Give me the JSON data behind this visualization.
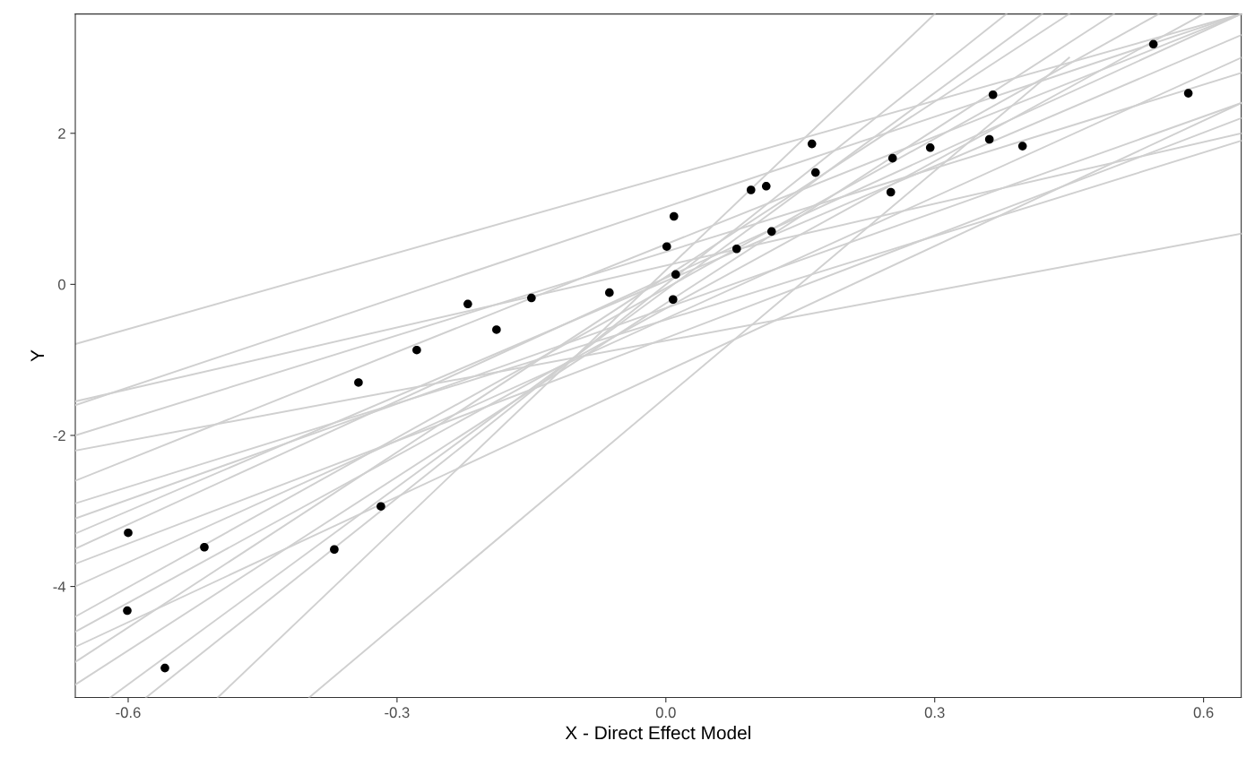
{
  "chart_data": {
    "type": "scatter",
    "xlabel": "X - Direct Effect Model",
    "ylabel": "Y",
    "xlim": [
      -0.659,
      0.642
    ],
    "ylim": [
      -5.47,
      3.58
    ],
    "xticks": [
      -0.6,
      -0.3,
      {
        "value": 0,
        "label": "0.0"
      },
      0.3,
      0.6
    ],
    "yticks": [
      -4,
      -2,
      0,
      2
    ],
    "grid": false,
    "legend": false,
    "series": [
      {
        "type": "line",
        "color": "#d0d0d0",
        "x": [
          -0.659,
          0.642
        ],
        "values": [
          -0.79,
          3.58
        ]
      },
      {
        "type": "line",
        "color": "#d0d0d0",
        "x": [
          -0.659,
          0.642
        ],
        "values": [
          -1.55,
          2.0
        ]
      },
      {
        "type": "line",
        "color": "#d0d0d0",
        "x": [
          -0.659,
          0.642
        ],
        "values": [
          -2.2,
          0.67
        ]
      },
      {
        "type": "line",
        "color": "#d0d0d0",
        "x": [
          -0.659,
          0.642
        ],
        "values": [
          -3.1,
          2.4
        ]
      },
      {
        "type": "line",
        "color": "#d0d0d0",
        "x": [
          -0.659,
          0.642
        ],
        "values": [
          -3.3,
          3.3
        ]
      },
      {
        "type": "line",
        "color": "#d0d0d0",
        "x": [
          -0.659,
          0.55
        ],
        "values": [
          -4.4,
          3.58
        ]
      },
      {
        "type": "line",
        "color": "#d0d0d0",
        "x": [
          -0.659,
          0.45
        ],
        "values": [
          -5.0,
          3.58
        ]
      },
      {
        "type": "line",
        "color": "#d0d0d0",
        "x": [
          -0.62,
          0.42
        ],
        "values": [
          -5.47,
          3.58
        ]
      },
      {
        "type": "line",
        "color": "#d0d0d0",
        "x": [
          -0.5,
          0.3
        ],
        "values": [
          -5.47,
          3.58
        ]
      },
      {
        "type": "line",
        "color": "#d0d0d0",
        "x": [
          -0.398,
          0.45
        ],
        "values": [
          -5.47,
          3.0
        ]
      },
      {
        "type": "line",
        "color": "#d0d0d0",
        "x": [
          -0.659,
          0.642
        ],
        "values": [
          -2.6,
          3.58
        ]
      },
      {
        "type": "line",
        "color": "#d0d0d0",
        "x": [
          -0.659,
          0.642
        ],
        "values": [
          -3.7,
          2.2
        ]
      },
      {
        "type": "line",
        "color": "#d0d0d0",
        "x": [
          -0.659,
          0.642
        ],
        "values": [
          -2.0,
          2.8
        ]
      },
      {
        "type": "line",
        "color": "#d0d0d0",
        "x": [
          -0.659,
          0.642
        ],
        "values": [
          -4.0,
          3.0
        ]
      },
      {
        "type": "line",
        "color": "#d0d0d0",
        "x": [
          -0.659,
          0.642
        ],
        "values": [
          -4.8,
          2.4
        ]
      },
      {
        "type": "line",
        "color": "#d0d0d0",
        "x": [
          -0.659,
          0.642
        ],
        "values": [
          -3.5,
          3.58
        ]
      },
      {
        "type": "line",
        "color": "#d0d0d0",
        "x": [
          -0.659,
          0.642
        ],
        "values": [
          -2.9,
          1.9
        ]
      },
      {
        "type": "line",
        "color": "#d0d0d0",
        "x": [
          -0.659,
          0.6
        ],
        "values": [
          -4.6,
          3.58
        ]
      },
      {
        "type": "line",
        "color": "#d0d0d0",
        "x": [
          -0.659,
          0.5
        ],
        "values": [
          -5.3,
          3.58
        ]
      },
      {
        "type": "line",
        "color": "#d0d0d0",
        "x": [
          -0.58,
          0.38
        ],
        "values": [
          -5.47,
          3.58
        ]
      },
      {
        "type": "line",
        "color": "#d0d0d0",
        "x": [
          -0.659,
          0.642
        ],
        "values": [
          -1.6,
          3.58
        ]
      },
      {
        "color": "#000000",
        "marker": "circle",
        "x": [
          0.544,
          0.583,
          0.365,
          0.361,
          0.398,
          0.295,
          0.253,
          0.251,
          0.163,
          0.167,
          0.112,
          0.095,
          0.118,
          0.079,
          0.009,
          0.001,
          0.011,
          0.008,
          -0.063,
          -0.15,
          -0.189,
          -0.221,
          -0.278,
          -0.343,
          -0.318,
          -0.37,
          -0.515,
          -0.6,
          -0.601,
          -0.559
        ],
        "values": [
          3.18,
          2.53,
          2.51,
          1.92,
          1.83,
          1.81,
          1.67,
          1.22,
          1.86,
          1.48,
          1.3,
          1.25,
          0.7,
          0.47,
          0.9,
          0.5,
          0.13,
          -0.2,
          -0.11,
          -0.18,
          -0.6,
          -0.26,
          -0.87,
          -1.3,
          -2.94,
          -3.51,
          -3.48,
          -3.29,
          -4.32,
          -5.08
        ]
      }
    ]
  }
}
